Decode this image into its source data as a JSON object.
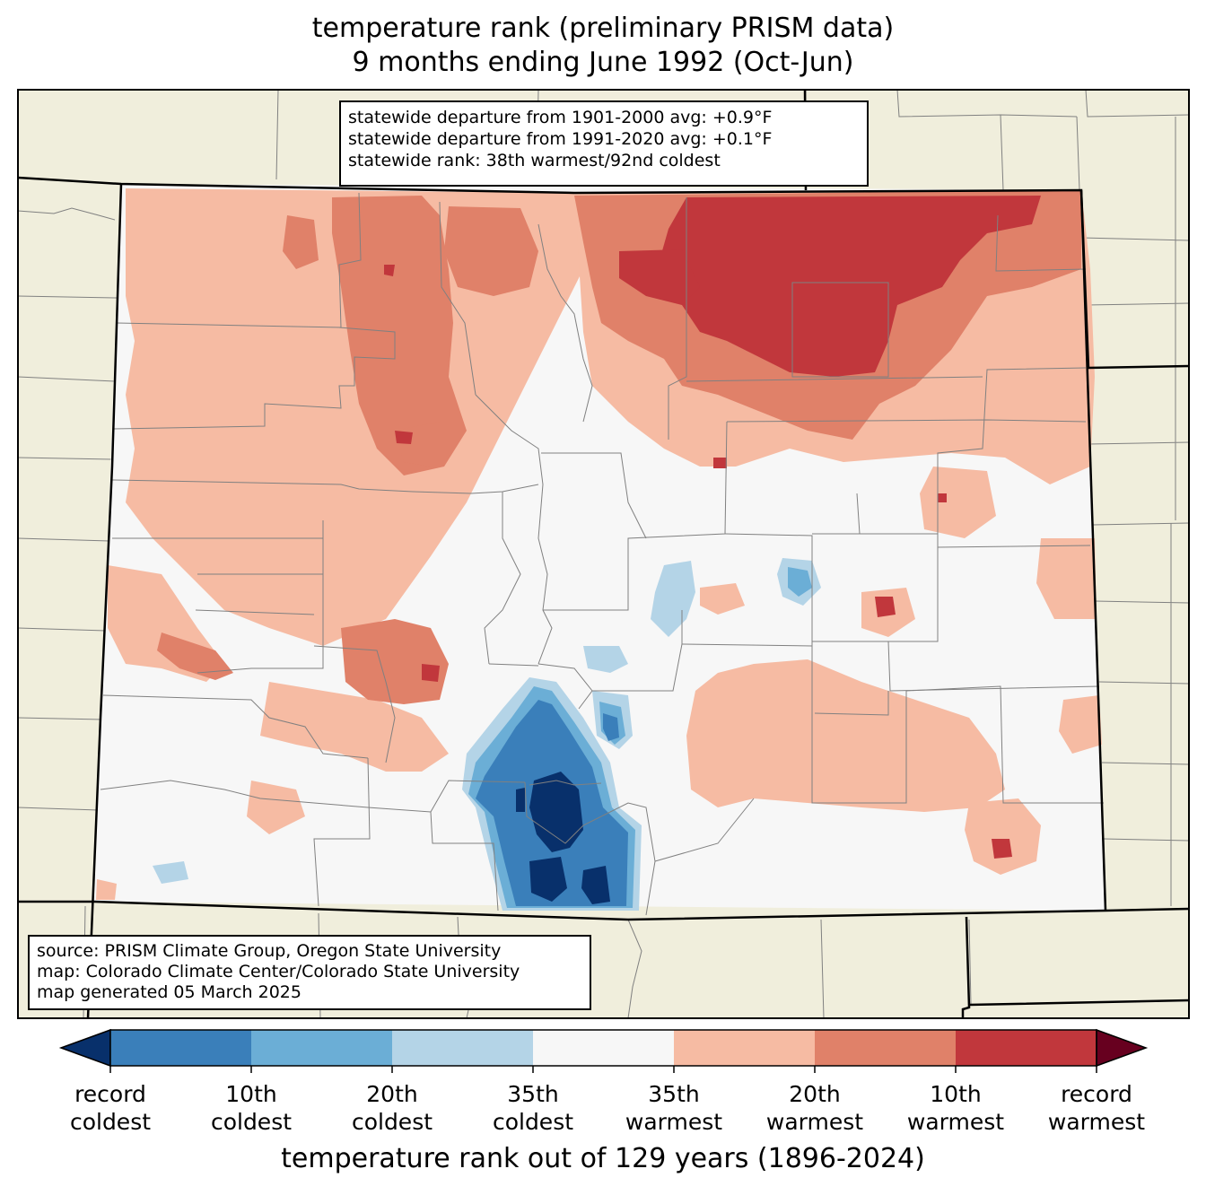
{
  "title_line1": "temperature rank (preliminary PRISM data)",
  "title_line2": "9 months ending June 1992 (Oct-Jun)",
  "stats": {
    "line1": "statewide departure from 1901-2000 avg: +0.9°F",
    "line2": "statewide departure from 1991-2020 avg: +0.1°F",
    "line3": "statewide rank: 38th warmest/92nd coldest"
  },
  "credits": {
    "line1": "source: PRISM Climate Group, Oregon State University",
    "line2": "map: Colorado Climate Center/Colorado State University",
    "line3": "map generated 05 March 2025"
  },
  "colorbar": {
    "title": "temperature rank out of 129 years (1896-2024)",
    "labels": [
      {
        "line1": "record",
        "line2": "coldest"
      },
      {
        "line1": "10th",
        "line2": "coldest"
      },
      {
        "line1": "20th",
        "line2": "coldest"
      },
      {
        "line1": "35th",
        "line2": "coldest"
      },
      {
        "line1": "35th",
        "line2": "warmest"
      },
      {
        "line1": "20th",
        "line2": "warmest"
      },
      {
        "line1": "10th",
        "line2": "warmest"
      },
      {
        "line1": "record",
        "line2": "warmest"
      }
    ],
    "colors": [
      "#08306b",
      "#3a7fba",
      "#6baed6",
      "#b4d4e7",
      "#f7f7f7",
      "#f6bba3",
      "#e08169",
      "#c1373c",
      "#67001f"
    ]
  },
  "colors": {
    "land_outside": "#f0eedc",
    "state_fill": "#f7f7f7",
    "county_lines": "#808080"
  }
}
